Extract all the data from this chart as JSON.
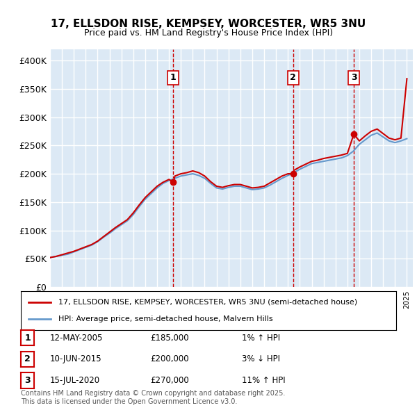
{
  "title1": "17, ELLSDON RISE, KEMPSEY, WORCESTER, WR5 3NU",
  "title2": "Price paid vs. HM Land Registry's House Price Index (HPI)",
  "ylabel_ticks": [
    "£0",
    "£50K",
    "£100K",
    "£150K",
    "£200K",
    "£250K",
    "£300K",
    "£350K",
    "£400K"
  ],
  "ytick_values": [
    0,
    50000,
    100000,
    150000,
    200000,
    250000,
    300000,
    350000,
    400000
  ],
  "ylim": [
    0,
    420000
  ],
  "xlim_start": 1995.0,
  "xlim_end": 2025.5,
  "bg_color": "#dce9f5",
  "plot_bg_color": "#dce9f5",
  "line1_color": "#cc0000",
  "line2_color": "#6699cc",
  "grid_color": "#ffffff",
  "sale_marker_color": "#cc0000",
  "dashed_line_color": "#cc0000",
  "legend1": "17, ELLSDON RISE, KEMPSEY, WORCESTER, WR5 3NU (semi-detached house)",
  "legend2": "HPI: Average price, semi-detached house, Malvern Hills",
  "footnote": "Contains HM Land Registry data © Crown copyright and database right 2025.\nThis data is licensed under the Open Government Licence v3.0.",
  "sales": [
    {
      "num": 1,
      "date": "12-MAY-2005",
      "price": 185000,
      "hpi_pct": "1%",
      "hpi_dir": "↑",
      "year": 2005.36
    },
    {
      "num": 2,
      "date": "10-JUN-2015",
      "price": 200000,
      "hpi_pct": "3%",
      "hpi_dir": "↓",
      "year": 2015.44
    },
    {
      "num": 3,
      "date": "15-JUL-2020",
      "price": 270000,
      "hpi_pct": "11%",
      "hpi_dir": "↑",
      "year": 2020.54
    }
  ],
  "hpi_line": {
    "years": [
      1995.0,
      1995.5,
      1996.0,
      1996.5,
      1997.0,
      1997.5,
      1998.0,
      1998.5,
      1999.0,
      1999.5,
      2000.0,
      2000.5,
      2001.0,
      2001.5,
      2002.0,
      2002.5,
      2003.0,
      2003.5,
      2004.0,
      2004.5,
      2005.0,
      2005.5,
      2006.0,
      2006.5,
      2007.0,
      2007.5,
      2008.0,
      2008.5,
      2009.0,
      2009.5,
      2010.0,
      2010.5,
      2011.0,
      2011.5,
      2012.0,
      2012.5,
      2013.0,
      2013.5,
      2014.0,
      2014.5,
      2015.0,
      2015.5,
      2016.0,
      2016.5,
      2017.0,
      2017.5,
      2018.0,
      2018.5,
      2019.0,
      2019.5,
      2020.0,
      2020.5,
      2021.0,
      2021.5,
      2022.0,
      2022.5,
      2023.0,
      2023.5,
      2024.0,
      2024.5,
      2025.0
    ],
    "values": [
      52000,
      54000,
      56000,
      58000,
      62000,
      66000,
      70000,
      74000,
      80000,
      88000,
      95000,
      103000,
      110000,
      117000,
      128000,
      142000,
      155000,
      165000,
      175000,
      183000,
      188000,
      192000,
      196000,
      198000,
      200000,
      197000,
      192000,
      183000,
      175000,
      173000,
      176000,
      178000,
      178000,
      175000,
      172000,
      173000,
      175000,
      180000,
      186000,
      192000,
      197000,
      202000,
      208000,
      213000,
      218000,
      220000,
      222000,
      224000,
      226000,
      228000,
      232000,
      240000,
      252000,
      260000,
      268000,
      272000,
      265000,
      258000,
      255000,
      258000,
      262000
    ]
  },
  "price_line": {
    "years": [
      1995.0,
      1995.5,
      1996.0,
      1996.5,
      1997.0,
      1997.5,
      1998.0,
      1998.5,
      1999.0,
      1999.5,
      2000.0,
      2000.5,
      2001.0,
      2001.5,
      2002.0,
      2002.5,
      2003.0,
      2003.5,
      2004.0,
      2004.5,
      2005.0,
      2005.36,
      2005.5,
      2006.0,
      2006.5,
      2007.0,
      2007.5,
      2008.0,
      2008.5,
      2009.0,
      2009.5,
      2010.0,
      2010.5,
      2011.0,
      2011.5,
      2012.0,
      2012.5,
      2013.0,
      2013.5,
      2014.0,
      2014.5,
      2015.0,
      2015.44,
      2015.5,
      2016.0,
      2016.5,
      2017.0,
      2017.5,
      2018.0,
      2018.5,
      2019.0,
      2019.5,
      2020.0,
      2020.54,
      2021.0,
      2021.5,
      2022.0,
      2022.5,
      2023.0,
      2023.5,
      2024.0,
      2024.5,
      2025.0
    ],
    "values": [
      52000,
      54000,
      57000,
      60000,
      63000,
      67000,
      71000,
      75000,
      81000,
      89000,
      97000,
      105000,
      112000,
      119000,
      131000,
      145000,
      158000,
      168000,
      178000,
      185000,
      190000,
      185000,
      196000,
      200000,
      202000,
      205000,
      202000,
      196000,
      186000,
      178000,
      176000,
      179000,
      181000,
      181000,
      178000,
      175000,
      176000,
      178000,
      184000,
      190000,
      196000,
      200000,
      200000,
      206000,
      212000,
      217000,
      222000,
      224000,
      227000,
      229000,
      231000,
      233000,
      236000,
      270000,
      258000,
      267000,
      275000,
      279000,
      271000,
      263000,
      260000,
      263000,
      368000
    ]
  }
}
